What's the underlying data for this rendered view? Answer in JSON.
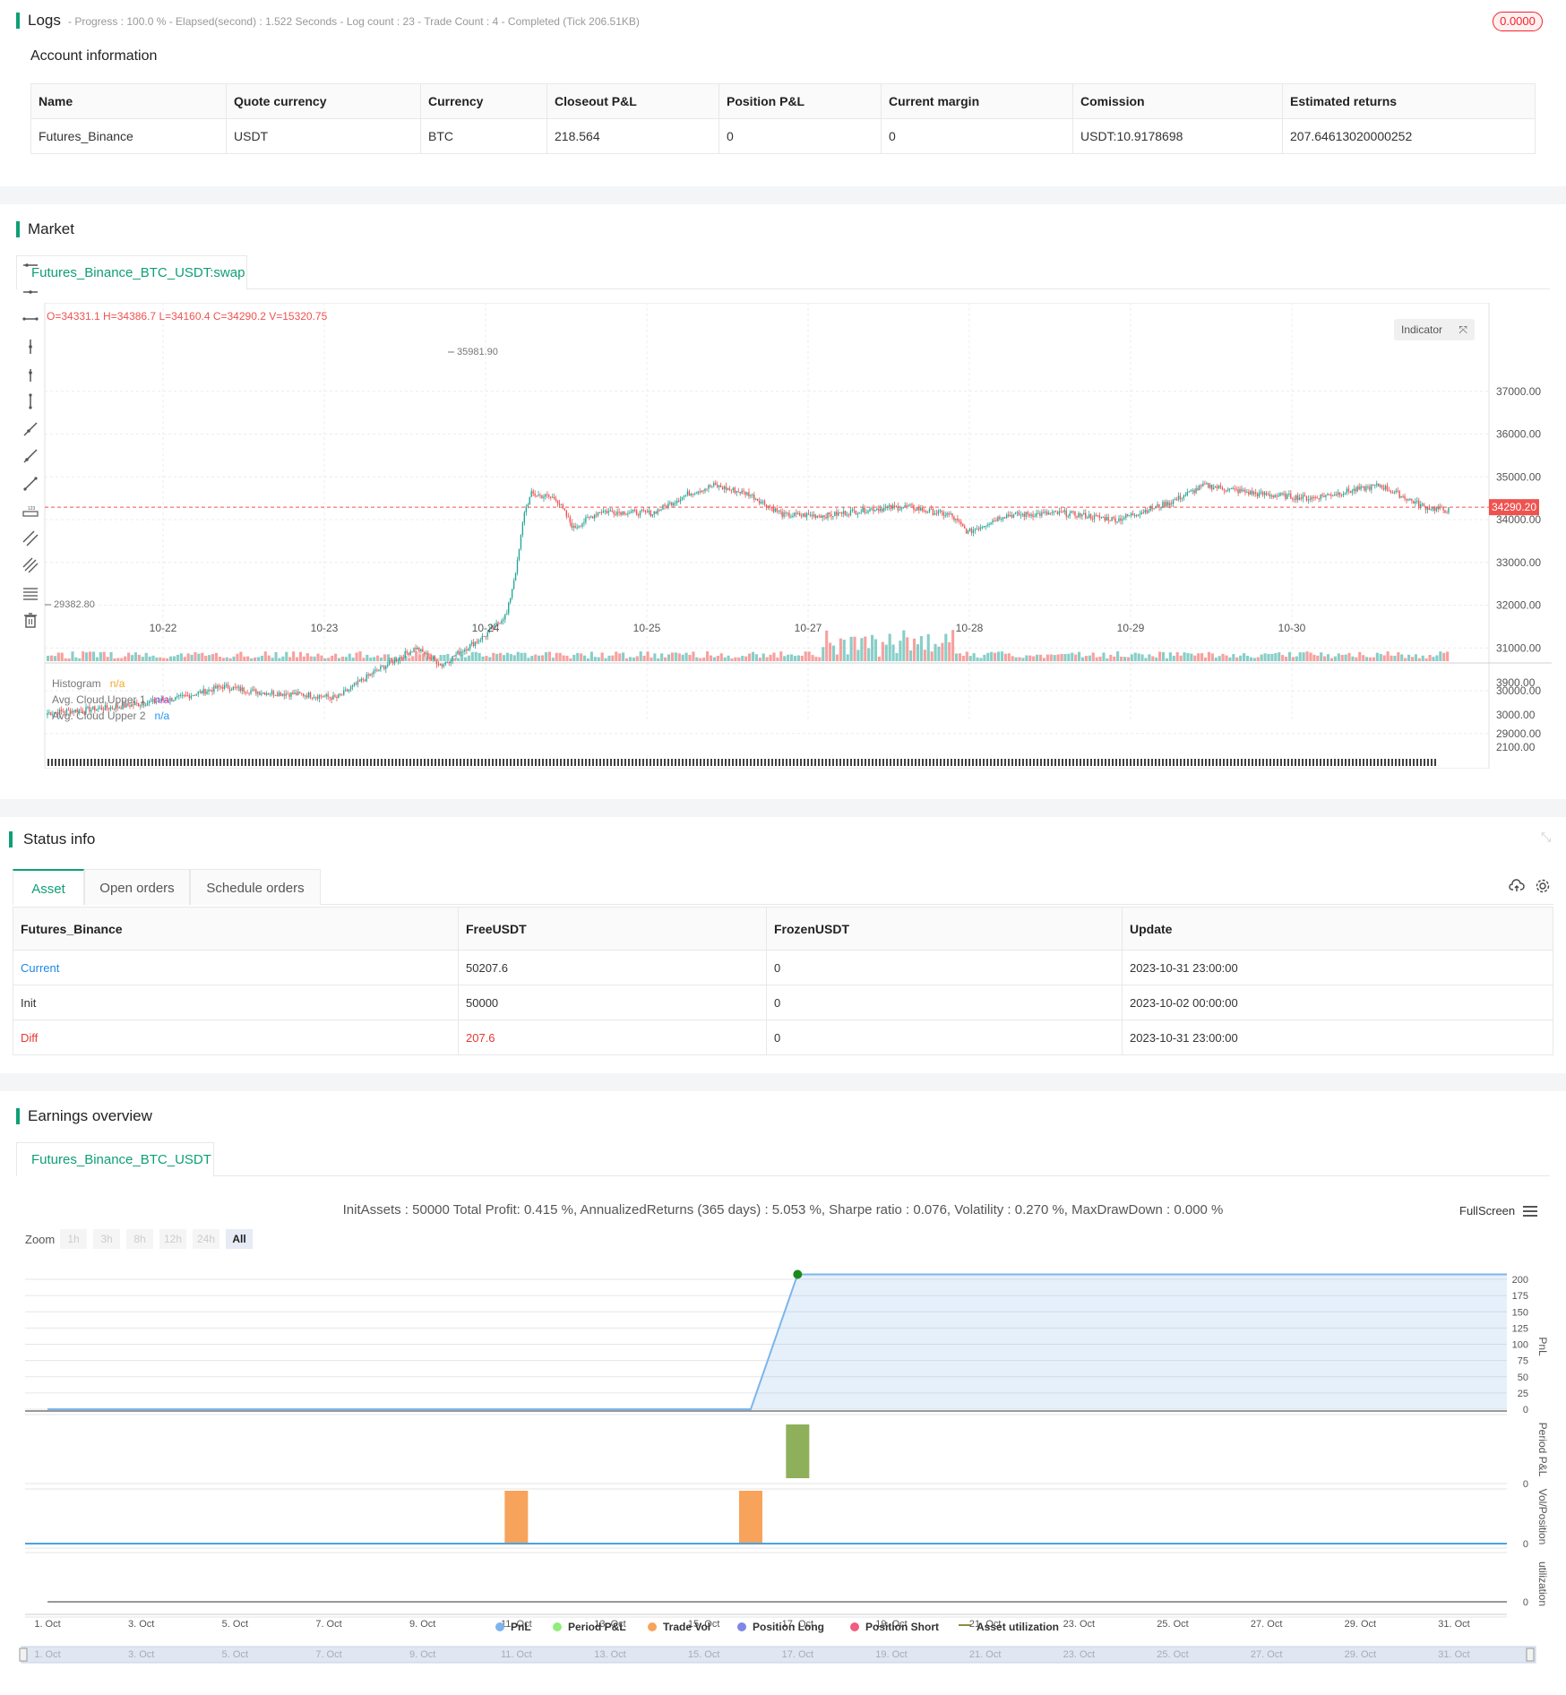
{
  "logs": {
    "title": "Logs",
    "status": "- Progress : 100.0 % - Elapsed(second) : 1.522 Seconds - Log count : 23 - Trade Count : 4 - Completed (Tick 206.51KB)",
    "badge": "0.0000"
  },
  "account": {
    "title": "Account information",
    "headers": [
      "Name",
      "Quote currency",
      "Currency",
      "Closeout P&L",
      "Position P&L",
      "Current margin",
      "Comission",
      "Estimated returns"
    ],
    "row": [
      "Futures_Binance",
      "USDT",
      "BTC",
      "218.564",
      "0",
      "0",
      "USDT:10.9178698",
      "207.64613020000252"
    ]
  },
  "market": {
    "title": "Market",
    "tab": "Futures_Binance_BTC_USDT:swap",
    "ohlc": "O=34331.1 H=34386.7 L=34160.4 C=34290.2 V=15320.75",
    "indicator_button": "Indicator",
    "last_price": "34290.20",
    "high_label": "35981.90",
    "low_label": "29382.80",
    "legend": [
      {
        "name": "Histogram",
        "value": "n/a",
        "color": "#f5a623"
      },
      {
        "name": "Avg. Cloud Upper 1",
        "value": "n/a",
        "color": "#b04ad6"
      },
      {
        "name": "Avg. Cloud Upper 2",
        "value": "n/a",
        "color": "#2196f3"
      }
    ],
    "price_ticks": [
      "37000.00",
      "36000.00",
      "35000.00",
      "34000.00",
      "33000.00",
      "32000.00",
      "31000.00",
      "30000.00",
      "29000.00"
    ],
    "ind_ticks": [
      "3900.00",
      "3000.00",
      "2100.00"
    ],
    "date_ticks": [
      "10-22",
      "10-23",
      "10-24",
      "10-25",
      "10-27",
      "10-28",
      "10-29",
      "10-30"
    ],
    "colors": {
      "up": "#26a69a",
      "down": "#ef5350"
    }
  },
  "status": {
    "title": "Status info",
    "tabs": [
      "Asset",
      "Open orders",
      "Schedule orders"
    ],
    "headers": [
      "Futures_Binance",
      "FreeUSDT",
      "FrozenUSDT",
      "Update"
    ],
    "rows": [
      {
        "label": "Current",
        "free": "50207.6",
        "frozen": "0",
        "update": "2023-10-31 23:00:00"
      },
      {
        "label": "Init",
        "free": "50000",
        "frozen": "0",
        "update": "2023-10-02 00:00:00"
      },
      {
        "label": "Diff",
        "free": "207.6",
        "frozen": "0",
        "update": "2023-10-31 23:00:00"
      }
    ]
  },
  "earnings": {
    "title": "Earnings overview",
    "tab": "Futures_Binance_BTC_USDT",
    "summary": "InitAssets : 50000 Total Profit: 0.415 %, AnnualizedReturns (365 days) : 5.053 %, Sharpe ratio : 0.076, Volatility : 0.270 %, MaxDrawDown : 0.000 %",
    "fullscreen": "FullScreen",
    "zoom_label": "Zoom",
    "zoom_buttons": [
      "1h",
      "3h",
      "8h",
      "12h",
      "24h",
      "All"
    ],
    "pnl_ticks": [
      "200",
      "175",
      "150",
      "125",
      "100",
      "75",
      "50",
      "25",
      "0"
    ],
    "axis_titles": [
      "PnL",
      "Period P&L",
      "Vol/Position",
      "utilization"
    ],
    "zero_label": "0",
    "x_ticks": [
      "1. Oct",
      "3. Oct",
      "5. Oct",
      "7. Oct",
      "9. Oct",
      "11. Oct",
      "13. Oct",
      "15. Oct",
      "17. Oct",
      "19. Oct",
      "21. Oct",
      "23. Oct",
      "25. Oct",
      "27. Oct",
      "29. Oct",
      "31. Oct"
    ],
    "legend": [
      {
        "name": "PnL",
        "color": "#7cb5ec"
      },
      {
        "name": "Period P&L",
        "color": "#90ed7d"
      },
      {
        "name": "Trade Vol",
        "color": "#f7a35c"
      },
      {
        "name": "Position Long",
        "color": "#8085e9"
      },
      {
        "name": "Position Short",
        "color": "#f15c80"
      },
      {
        "name": "Asset utilization",
        "color": "#8d8d3c"
      }
    ]
  },
  "chart_data": {
    "type": "line",
    "title": "",
    "x": [
      "1. Oct",
      "11. Oct",
      "16. Oct",
      "17. Oct",
      "31. Oct"
    ],
    "series": [
      {
        "name": "PnL",
        "values": [
          0,
          0,
          0,
          207.6,
          207.6
        ]
      }
    ],
    "ylim": [
      0,
      200
    ]
  }
}
